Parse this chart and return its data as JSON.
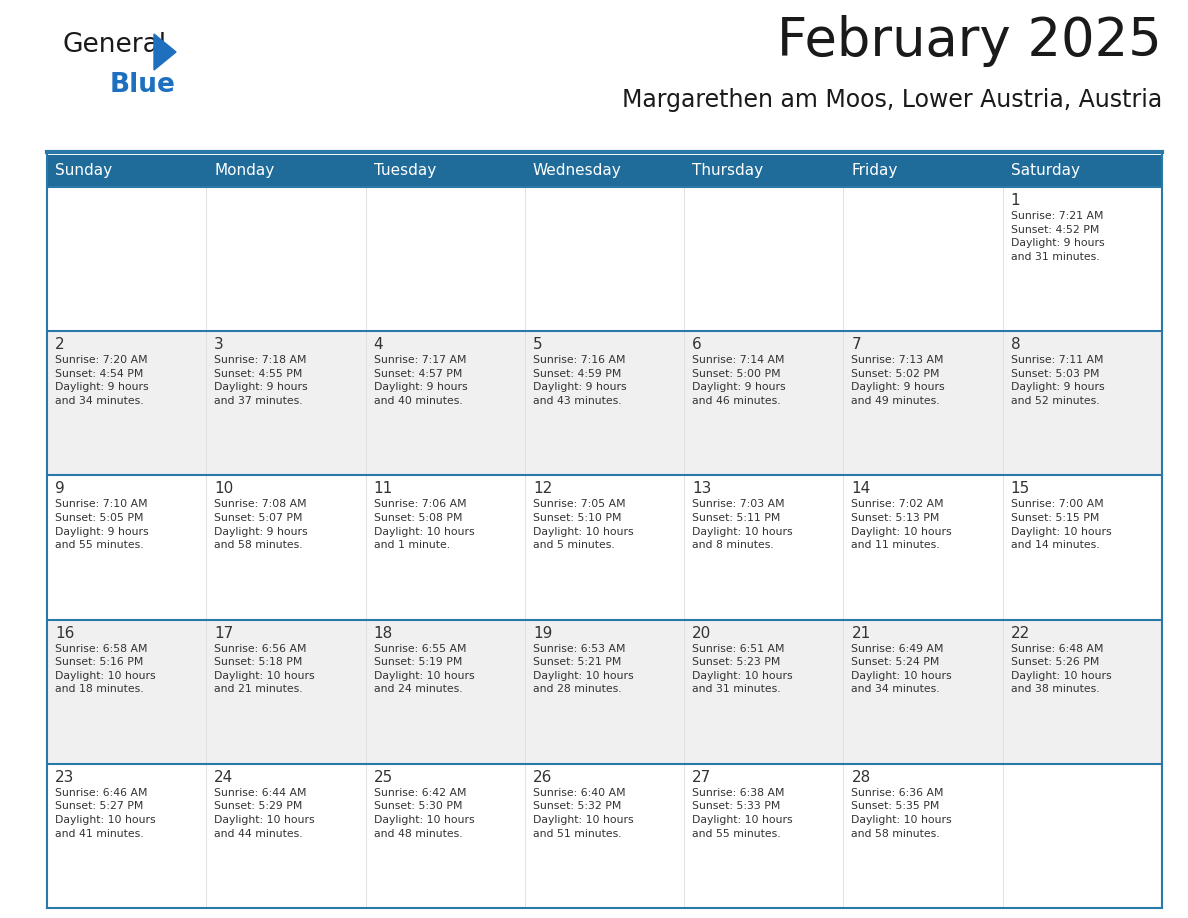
{
  "title": "February 2025",
  "subtitle": "Margarethen am Moos, Lower Austria, Austria",
  "header_bg_color": "#1F6B9A",
  "header_text_color": "#FFFFFF",
  "cell_bg_color": "#FFFFFF",
  "alt_row_bg_color": "#F0F0F0",
  "border_color": "#2878A8",
  "text_color": "#333333",
  "days_of_week": [
    "Sunday",
    "Monday",
    "Tuesday",
    "Wednesday",
    "Thursday",
    "Friday",
    "Saturday"
  ],
  "calendar": [
    [
      {
        "day": "",
        "info": ""
      },
      {
        "day": "",
        "info": ""
      },
      {
        "day": "",
        "info": ""
      },
      {
        "day": "",
        "info": ""
      },
      {
        "day": "",
        "info": ""
      },
      {
        "day": "",
        "info": ""
      },
      {
        "day": "1",
        "info": "Sunrise: 7:21 AM\nSunset: 4:52 PM\nDaylight: 9 hours\nand 31 minutes."
      }
    ],
    [
      {
        "day": "2",
        "info": "Sunrise: 7:20 AM\nSunset: 4:54 PM\nDaylight: 9 hours\nand 34 minutes."
      },
      {
        "day": "3",
        "info": "Sunrise: 7:18 AM\nSunset: 4:55 PM\nDaylight: 9 hours\nand 37 minutes."
      },
      {
        "day": "4",
        "info": "Sunrise: 7:17 AM\nSunset: 4:57 PM\nDaylight: 9 hours\nand 40 minutes."
      },
      {
        "day": "5",
        "info": "Sunrise: 7:16 AM\nSunset: 4:59 PM\nDaylight: 9 hours\nand 43 minutes."
      },
      {
        "day": "6",
        "info": "Sunrise: 7:14 AM\nSunset: 5:00 PM\nDaylight: 9 hours\nand 46 minutes."
      },
      {
        "day": "7",
        "info": "Sunrise: 7:13 AM\nSunset: 5:02 PM\nDaylight: 9 hours\nand 49 minutes."
      },
      {
        "day": "8",
        "info": "Sunrise: 7:11 AM\nSunset: 5:03 PM\nDaylight: 9 hours\nand 52 minutes."
      }
    ],
    [
      {
        "day": "9",
        "info": "Sunrise: 7:10 AM\nSunset: 5:05 PM\nDaylight: 9 hours\nand 55 minutes."
      },
      {
        "day": "10",
        "info": "Sunrise: 7:08 AM\nSunset: 5:07 PM\nDaylight: 9 hours\nand 58 minutes."
      },
      {
        "day": "11",
        "info": "Sunrise: 7:06 AM\nSunset: 5:08 PM\nDaylight: 10 hours\nand 1 minute."
      },
      {
        "day": "12",
        "info": "Sunrise: 7:05 AM\nSunset: 5:10 PM\nDaylight: 10 hours\nand 5 minutes."
      },
      {
        "day": "13",
        "info": "Sunrise: 7:03 AM\nSunset: 5:11 PM\nDaylight: 10 hours\nand 8 minutes."
      },
      {
        "day": "14",
        "info": "Sunrise: 7:02 AM\nSunset: 5:13 PM\nDaylight: 10 hours\nand 11 minutes."
      },
      {
        "day": "15",
        "info": "Sunrise: 7:00 AM\nSunset: 5:15 PM\nDaylight: 10 hours\nand 14 minutes."
      }
    ],
    [
      {
        "day": "16",
        "info": "Sunrise: 6:58 AM\nSunset: 5:16 PM\nDaylight: 10 hours\nand 18 minutes."
      },
      {
        "day": "17",
        "info": "Sunrise: 6:56 AM\nSunset: 5:18 PM\nDaylight: 10 hours\nand 21 minutes."
      },
      {
        "day": "18",
        "info": "Sunrise: 6:55 AM\nSunset: 5:19 PM\nDaylight: 10 hours\nand 24 minutes."
      },
      {
        "day": "19",
        "info": "Sunrise: 6:53 AM\nSunset: 5:21 PM\nDaylight: 10 hours\nand 28 minutes."
      },
      {
        "day": "20",
        "info": "Sunrise: 6:51 AM\nSunset: 5:23 PM\nDaylight: 10 hours\nand 31 minutes."
      },
      {
        "day": "21",
        "info": "Sunrise: 6:49 AM\nSunset: 5:24 PM\nDaylight: 10 hours\nand 34 minutes."
      },
      {
        "day": "22",
        "info": "Sunrise: 6:48 AM\nSunset: 5:26 PM\nDaylight: 10 hours\nand 38 minutes."
      }
    ],
    [
      {
        "day": "23",
        "info": "Sunrise: 6:46 AM\nSunset: 5:27 PM\nDaylight: 10 hours\nand 41 minutes."
      },
      {
        "day": "24",
        "info": "Sunrise: 6:44 AM\nSunset: 5:29 PM\nDaylight: 10 hours\nand 44 minutes."
      },
      {
        "day": "25",
        "info": "Sunrise: 6:42 AM\nSunset: 5:30 PM\nDaylight: 10 hours\nand 48 minutes."
      },
      {
        "day": "26",
        "info": "Sunrise: 6:40 AM\nSunset: 5:32 PM\nDaylight: 10 hours\nand 51 minutes."
      },
      {
        "day": "27",
        "info": "Sunrise: 6:38 AM\nSunset: 5:33 PM\nDaylight: 10 hours\nand 55 minutes."
      },
      {
        "day": "28",
        "info": "Sunrise: 6:36 AM\nSunset: 5:35 PM\nDaylight: 10 hours\nand 58 minutes."
      },
      {
        "day": "",
        "info": ""
      }
    ]
  ],
  "logo_general_color": "#1A1A1A",
  "logo_blue_color": "#1F6FBF",
  "logo_triangle_color": "#1F6FBF",
  "title_fontsize": 38,
  "subtitle_fontsize": 17,
  "dow_fontsize": 11,
  "day_num_fontsize": 11,
  "info_fontsize": 7.8
}
